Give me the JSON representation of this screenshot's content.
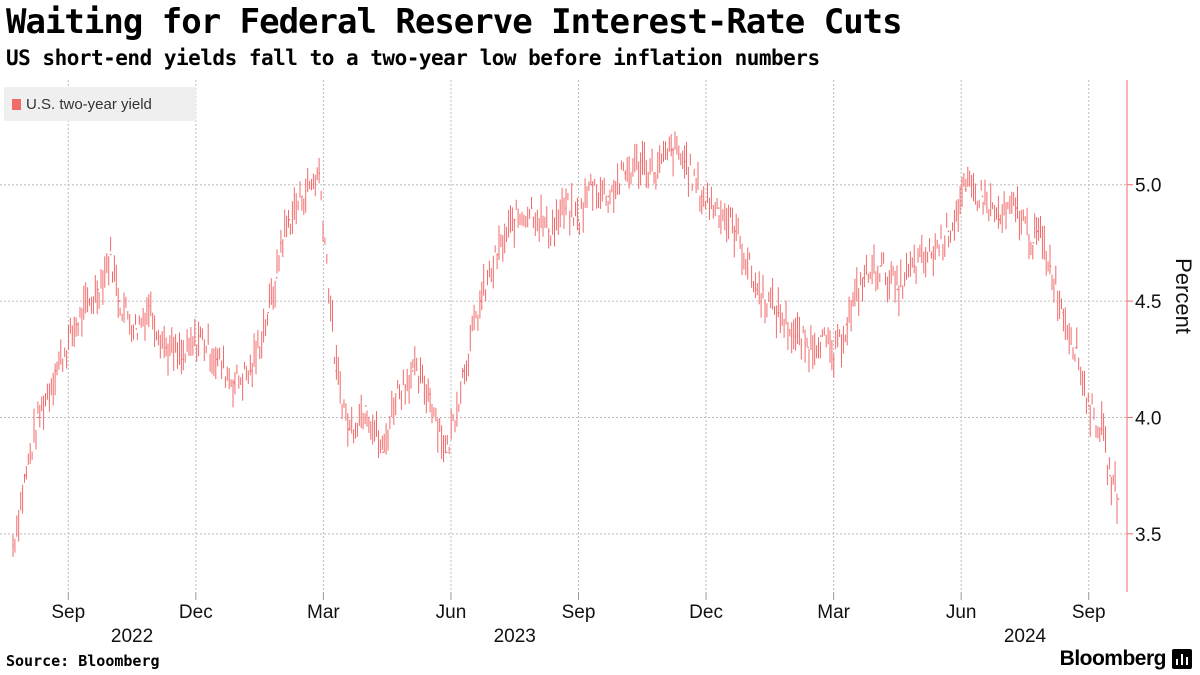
{
  "chart_data": {
    "type": "line",
    "title": "Waiting for Federal Reserve Interest-Rate Cuts",
    "subtitle": "US short-end yields fall to a two-year low before inflation numbers",
    "ylabel": "Percent",
    "xlabel": "",
    "ylim": [
      3.25,
      5.45
    ],
    "yticks": [
      "3.5",
      "4.0",
      "4.5",
      "5.0"
    ],
    "x_tick_labels": [
      "Sep",
      "Dec",
      "Mar",
      "Jun",
      "Sep",
      "Dec",
      "Mar",
      "Jun",
      "Sep"
    ],
    "x_year_labels": [
      {
        "label": "2022",
        "month_index": 1
      },
      {
        "label": "2023",
        "month_index": 10
      },
      {
        "label": "2024",
        "month_index": 22
      }
    ],
    "grid": true,
    "series": [
      {
        "name": "U.S. two-year yield",
        "color": "#f26b6b",
        "x_month_index": [
          0,
          0.3,
          0.6,
          1.0,
          1.5,
          2.0,
          2.3,
          2.5,
          2.9,
          3.2,
          3.6,
          4.0,
          4.4,
          4.8,
          5.2,
          5.6,
          6.0,
          6.2,
          6.3,
          6.5,
          6.8,
          7.2,
          7.6,
          7.9,
          8.3,
          8.7,
          9.0,
          9.4,
          9.8,
          10.2,
          10.6,
          11.0,
          11.4,
          11.8,
          12.2,
          12.6,
          13.0,
          13.3,
          13.6,
          14.0,
          14.4,
          14.8,
          15.1,
          15.5,
          15.8,
          16.2,
          16.6,
          17.0,
          17.5,
          18.0,
          18.4,
          18.7,
          19.0,
          19.3,
          19.6,
          20.0,
          20.4,
          20.8,
          21.2,
          21.6,
          22.0,
          22.4,
          22.8,
          23.2,
          23.6,
          24.0,
          24.1,
          24.4,
          24.7,
          25.0,
          25.3,
          25.6,
          25.8,
          26.0
        ],
        "values": [
          3.45,
          3.75,
          4.0,
          4.2,
          4.4,
          4.55,
          4.7,
          4.5,
          4.38,
          4.48,
          4.3,
          4.25,
          4.35,
          4.25,
          4.15,
          4.2,
          4.45,
          4.6,
          4.75,
          4.85,
          4.95,
          5.05,
          4.2,
          3.95,
          4.05,
          3.85,
          4.1,
          4.2,
          4.1,
          3.85,
          4.2,
          4.5,
          4.7,
          4.85,
          4.9,
          4.8,
          4.9,
          4.85,
          5.0,
          4.95,
          5.05,
          5.1,
          5.05,
          5.15,
          5.1,
          4.95,
          4.9,
          4.8,
          4.55,
          4.45,
          4.35,
          4.3,
          4.35,
          4.25,
          4.4,
          4.6,
          4.65,
          4.55,
          4.65,
          4.7,
          4.8,
          4.98,
          4.95,
          4.85,
          4.9,
          4.75,
          4.8,
          4.65,
          4.45,
          4.3,
          4.05,
          3.95,
          3.75,
          3.65
        ]
      }
    ]
  },
  "footer": {
    "source": "Source: Bloomberg",
    "brand": "Bloomberg"
  }
}
